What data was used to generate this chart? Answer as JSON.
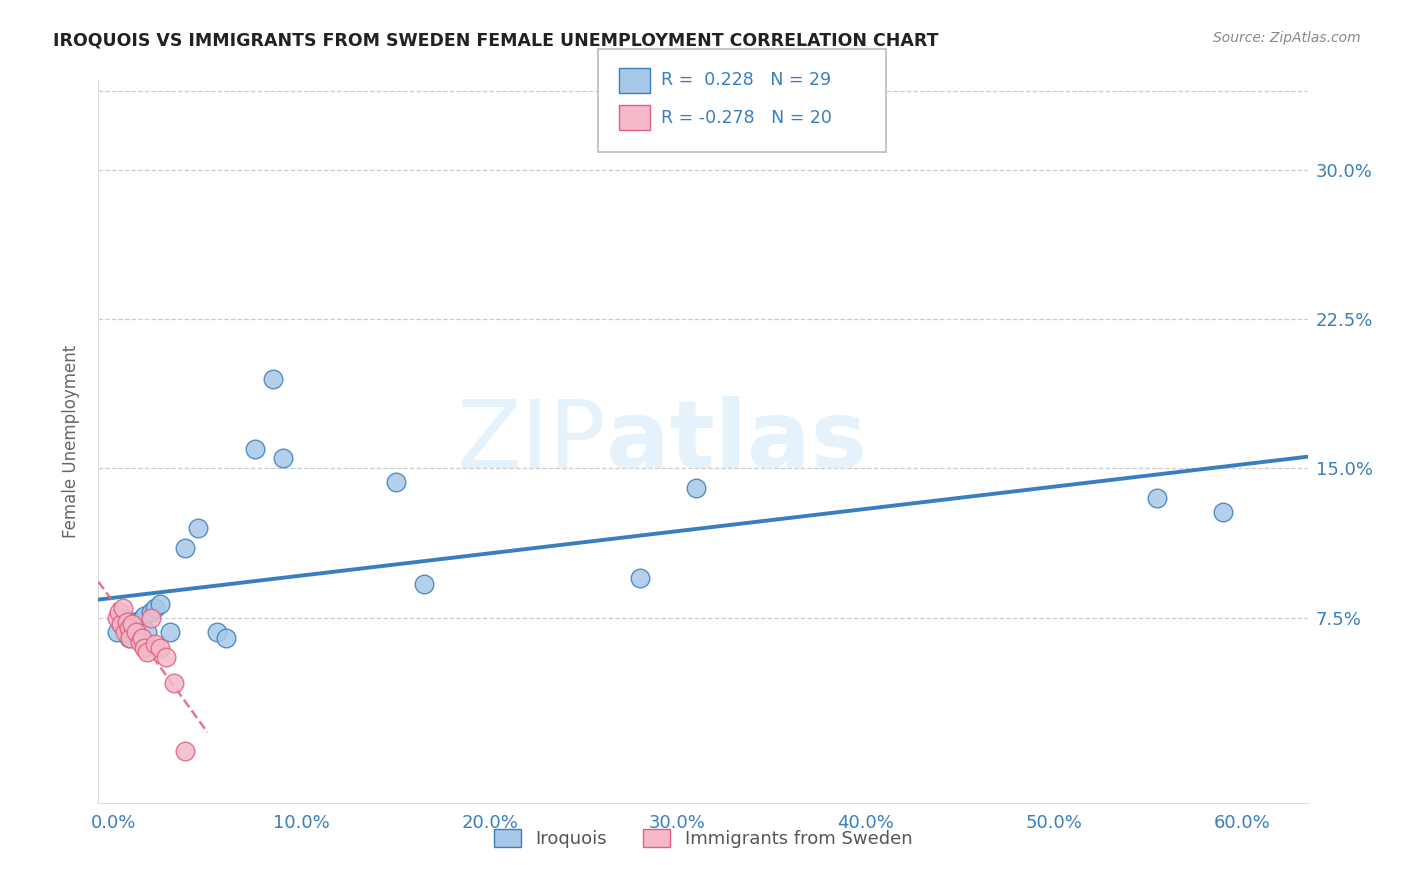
{
  "title": "IROQUOIS VS IMMIGRANTS FROM SWEDEN FEMALE UNEMPLOYMENT CORRELATION CHART",
  "source": "Source: ZipAtlas.com",
  "ylabel": "Female Unemployment",
  "ytick_labels": [
    "7.5%",
    "15.0%",
    "22.5%",
    "30.0%"
  ],
  "ytick_values": [
    0.075,
    0.15,
    0.225,
    0.3
  ],
  "xlim": [
    -0.008,
    0.635
  ],
  "ylim": [
    -0.018,
    0.345
  ],
  "iroquois_color": "#a8c8e8",
  "iroquois_line_color": "#3a7fbd",
  "sweden_color": "#f4b8c8",
  "sweden_line_color": "#e06080",
  "legend_R_iroquois": "R =  0.228",
  "legend_N_iroquois": "N = 29",
  "legend_R_sweden": "R = -0.278",
  "legend_N_sweden": "N = 20",
  "watermark_zip": "ZIP",
  "watermark_atlas": "atlas",
  "iroquois_x": [
    0.002,
    0.004,
    0.005,
    0.006,
    0.007,
    0.008,
    0.009,
    0.01,
    0.012,
    0.014,
    0.016,
    0.018,
    0.02,
    0.022,
    0.025,
    0.03,
    0.038,
    0.045,
    0.055,
    0.06,
    0.075,
    0.085,
    0.09,
    0.15,
    0.165,
    0.28,
    0.31,
    0.555,
    0.59
  ],
  "iroquois_y": [
    0.068,
    0.072,
    0.075,
    0.07,
    0.073,
    0.065,
    0.068,
    0.073,
    0.071,
    0.074,
    0.076,
    0.068,
    0.078,
    0.08,
    0.082,
    0.068,
    0.11,
    0.12,
    0.068,
    0.065,
    0.16,
    0.195,
    0.155,
    0.143,
    0.092,
    0.095,
    0.14,
    0.135,
    0.128
  ],
  "sweden_x": [
    0.002,
    0.003,
    0.004,
    0.005,
    0.006,
    0.007,
    0.008,
    0.009,
    0.01,
    0.012,
    0.014,
    0.015,
    0.016,
    0.018,
    0.02,
    0.022,
    0.025,
    0.028,
    0.032,
    0.038
  ],
  "sweden_y": [
    0.075,
    0.078,
    0.072,
    0.08,
    0.068,
    0.073,
    0.07,
    0.065,
    0.072,
    0.068,
    0.063,
    0.065,
    0.06,
    0.058,
    0.075,
    0.062,
    0.06,
    0.055,
    0.042,
    0.008
  ],
  "background_color": "#ffffff",
  "grid_color": "#cccccc",
  "title_color": "#222222",
  "source_color": "#888888",
  "axis_label_color": "#666666",
  "tick_color": "#3a7fbd"
}
